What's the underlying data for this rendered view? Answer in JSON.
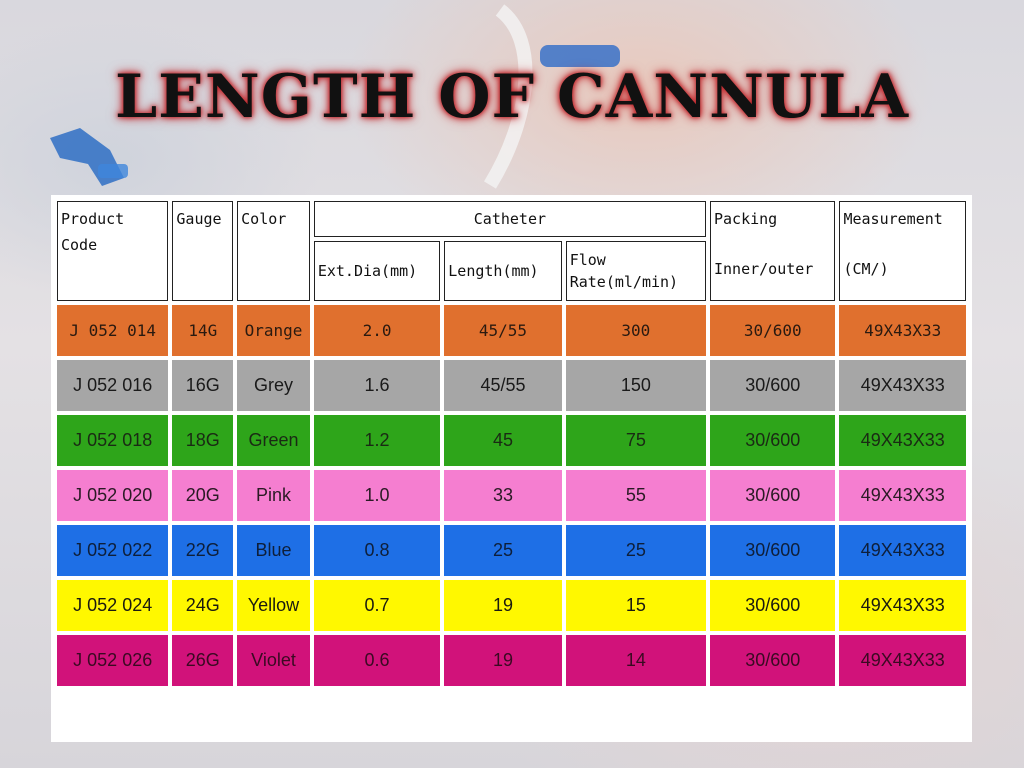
{
  "title": "LENGTH OF CANNULA",
  "headers": {
    "product_code": "Product Code",
    "gauge": "Gauge",
    "color": "Color",
    "catheter": "Catheter",
    "ext_dia": "Ext.Dia(mm)",
    "length": "Length(mm)",
    "flow_rate_1": "Flow",
    "flow_rate_2": "Rate(ml/min)",
    "packing": "Packing",
    "inner_outer": "Inner/outer",
    "measurement": "Measurement",
    "measurement_unit": "(CM/)"
  },
  "rows": [
    {
      "code": "J 052 014",
      "gauge": "14G",
      "color": "Orange",
      "ext_dia": "2.0",
      "length": "45/55",
      "flow": "300",
      "packing": "30/600",
      "measurement": "49X43X33",
      "bg": "#e0702e",
      "fg": "#2a1a10"
    },
    {
      "code": "J 052 016",
      "gauge": "16G",
      "color": "Grey",
      "ext_dia": "1.6",
      "length": "45/55",
      "flow": "150",
      "packing": "30/600",
      "measurement": "49X43X33",
      "bg": "#a6a6a6",
      "fg": "#1a1a1a"
    },
    {
      "code": "J 052 018",
      "gauge": "18G",
      "color": "Green",
      "ext_dia": "1.2",
      "length": "45",
      "flow": "75",
      "packing": "30/600",
      "measurement": "49X43X33",
      "bg": "#2ea51a",
      "fg": "#1a2a14"
    },
    {
      "code": "J 052 020",
      "gauge": "20G",
      "color": "Pink",
      "ext_dia": "1.0",
      "length": "33",
      "flow": "55",
      "packing": "30/600",
      "measurement": "49X43X33",
      "bg": "#f57ed0",
      "fg": "#2a1a24"
    },
    {
      "code": "J 052 022",
      "gauge": "22G",
      "color": "Blue",
      "ext_dia": "0.8",
      "length": "25",
      "flow": "25",
      "packing": "30/600",
      "measurement": "49X43X33",
      "bg": "#1e6fe6",
      "fg": "#0e1f3a"
    },
    {
      "code": "J 052 024",
      "gauge": "24G",
      "color": "Yellow",
      "ext_dia": "0.7",
      "length": "19",
      "flow": "15",
      "packing": "30/600",
      "measurement": "49X43X33",
      "bg": "#fff800",
      "fg": "#1a1a10"
    },
    {
      "code": "J 052 026",
      "gauge": "26G",
      "color": "Violet",
      "ext_dia": "0.6",
      "length": "19",
      "flow": "14",
      "packing": "30/600",
      "measurement": "49X43X33",
      "bg": "#d1127a",
      "fg": "#3a0a22"
    }
  ]
}
